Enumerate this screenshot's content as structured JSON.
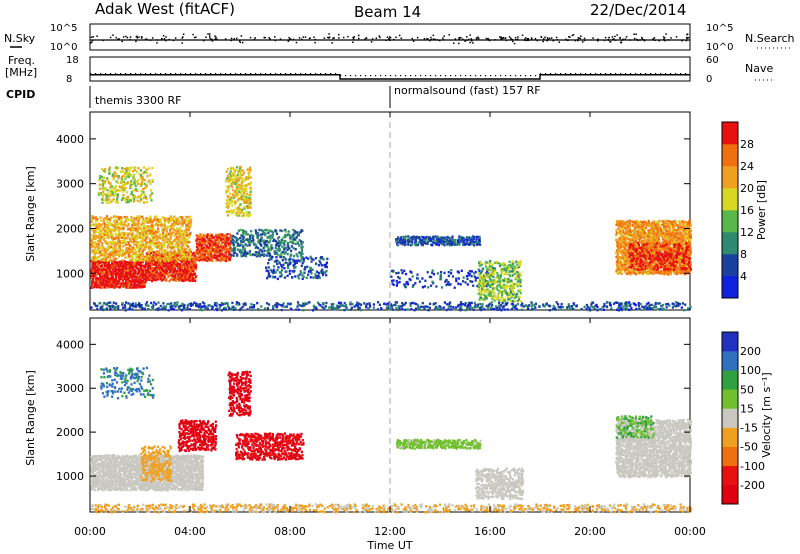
{
  "header": {
    "title": "Adak West (fitACF)",
    "beam": "Beam 14",
    "date": "22/Dec/2014"
  },
  "panels": {
    "nsky_label": "N.Sky",
    "nsearch_label": "N.Search",
    "freq_label_top": "Freq.",
    "freq_label_unit": "[MHz]",
    "nave_label": "Nave",
    "cpid_label": "CPID",
    "nsky_ticks": [
      "10^5",
      "10^0"
    ],
    "nsearch_ticks": [
      "10^5",
      "10^0"
    ],
    "freq_ticks": [
      "18",
      "8"
    ],
    "nave_ticks": [
      "60",
      "0"
    ],
    "cpid_segments": [
      {
        "start_ut": 0.0,
        "end_ut": 12.0,
        "label": "themis 3300 RF"
      },
      {
        "start_ut": 12.0,
        "end_ut": 24.0,
        "label": "normalsound (fast) 157 RF"
      }
    ],
    "freq_profile": [
      {
        "start_ut": 0.0,
        "end_ut": 10.0,
        "mhz": 10.8
      },
      {
        "start_ut": 10.0,
        "end_ut": 18.0,
        "mhz": 8.9
      },
      {
        "start_ut": 18.0,
        "end_ut": 24.0,
        "mhz": 10.8
      }
    ]
  },
  "colorbars": {
    "power": {
      "label": "Power [dB]",
      "ticks": [
        "4",
        "8",
        "12",
        "16",
        "20",
        "24",
        "28"
      ],
      "colors": [
        "#1020e0",
        "#1a40a0",
        "#2e8a70",
        "#58b84a",
        "#d8d820",
        "#f0a020",
        "#f07010",
        "#e81010"
      ]
    },
    "velocity": {
      "label": "Velocity [m s⁻¹]",
      "ticks": [
        "200",
        "100",
        "50",
        "15",
        "-15",
        "-50",
        "-100",
        "-200"
      ],
      "colors": [
        "#2030c0",
        "#3070c0",
        "#30a040",
        "#70c030",
        "#c8c8c0",
        "#f0a020",
        "#f07010",
        "#e81010",
        "#e00010"
      ]
    }
  },
  "axes": {
    "ylabel": "Slant Range [km]",
    "yticks": [
      "1000",
      "2000",
      "3000",
      "4000"
    ],
    "xticks": [
      "00:00",
      "04:00",
      "08:00",
      "12:00",
      "16:00",
      "20:00",
      "00:00"
    ],
    "xlabel": "Time UT"
  },
  "chart_data": [
    {
      "type": "heatmap",
      "title": "",
      "xlabel": "",
      "ylabel": "Slant Range [km]",
      "x_range_ut_hours": [
        0,
        24
      ],
      "ylim": [
        180,
        4600
      ],
      "color_quantity": "Power [dB]",
      "color_range": [
        0,
        30
      ],
      "scatter_regions": [
        {
          "t0": 0.0,
          "t1": 2.2,
          "r0": 700,
          "r1": 1300,
          "val": 29,
          "density": 0.95
        },
        {
          "t0": 2.2,
          "t1": 4.2,
          "r0": 850,
          "r1": 1500,
          "val": 28,
          "density": 0.9
        },
        {
          "t0": 4.2,
          "t1": 5.6,
          "r0": 1300,
          "r1": 1900,
          "val": 26,
          "density": 0.85
        },
        {
          "t0": 0.0,
          "t1": 4.0,
          "r0": 1300,
          "r1": 2300,
          "val": 20,
          "density": 0.6
        },
        {
          "t0": 0.3,
          "t1": 2.5,
          "r0": 2600,
          "r1": 3400,
          "val": 17,
          "density": 0.35
        },
        {
          "t0": 5.4,
          "t1": 6.4,
          "r0": 2300,
          "r1": 3400,
          "val": 18,
          "density": 0.5
        },
        {
          "t0": 5.6,
          "t1": 8.5,
          "r0": 1400,
          "r1": 2000,
          "val": 8,
          "density": 0.45
        },
        {
          "t0": 7.0,
          "t1": 9.5,
          "r0": 900,
          "r1": 1400,
          "val": 6,
          "density": 0.3
        },
        {
          "t0": 12.2,
          "t1": 15.6,
          "r0": 1650,
          "r1": 1850,
          "val": 6,
          "density": 0.75
        },
        {
          "t0": 12.0,
          "t1": 16.0,
          "r0": 700,
          "r1": 1100,
          "val": 5,
          "density": 0.2
        },
        {
          "t0": 15.5,
          "t1": 17.2,
          "r0": 400,
          "r1": 1300,
          "val": 14,
          "density": 0.55
        },
        {
          "t0": 21.0,
          "t1": 24.0,
          "r0": 1000,
          "r1": 2200,
          "val": 22,
          "density": 0.85
        },
        {
          "t0": 21.5,
          "t1": 24.0,
          "r0": 1100,
          "r1": 1700,
          "val": 28,
          "density": 0.55
        },
        {
          "t0": 0.0,
          "t1": 24.0,
          "r0": 200,
          "r1": 380,
          "val": 6,
          "density": 0.4
        }
      ]
    },
    {
      "type": "heatmap",
      "title": "",
      "xlabel": "Time UT",
      "ylabel": "Slant Range [km]",
      "x_range_ut_hours": [
        0,
        24
      ],
      "ylim": [
        180,
        4600
      ],
      "color_quantity": "Velocity [m s⁻¹]",
      "color_range": [
        -200,
        200
      ],
      "scatter_regions": [
        {
          "t0": 0.0,
          "t1": 4.5,
          "r0": 700,
          "r1": 1500,
          "val": 0,
          "density": 0.9
        },
        {
          "t0": 2.0,
          "t1": 3.2,
          "r0": 900,
          "r1": 1700,
          "val": -40,
          "density": 0.45
        },
        {
          "t0": 3.5,
          "t1": 5.0,
          "r0": 1600,
          "r1": 2300,
          "val": -180,
          "density": 0.55
        },
        {
          "t0": 5.5,
          "t1": 6.4,
          "r0": 2400,
          "r1": 3400,
          "val": -200,
          "density": 0.6
        },
        {
          "t0": 5.8,
          "t1": 8.5,
          "r0": 1400,
          "r1": 2000,
          "val": -160,
          "density": 0.6
        },
        {
          "t0": 0.4,
          "t1": 2.5,
          "r0": 2800,
          "r1": 3500,
          "val": 120,
          "density": 0.25
        },
        {
          "t0": 12.2,
          "t1": 15.6,
          "r0": 1650,
          "r1": 1850,
          "val": 40,
          "density": 0.75
        },
        {
          "t0": 15.4,
          "t1": 17.3,
          "r0": 500,
          "r1": 1200,
          "val": 0,
          "density": 0.55
        },
        {
          "t0": 21.0,
          "t1": 24.0,
          "r0": 1000,
          "r1": 2300,
          "val": 0,
          "density": 0.8
        },
        {
          "t0": 21.0,
          "t1": 22.5,
          "r0": 1900,
          "r1": 2400,
          "val": 60,
          "density": 0.4
        },
        {
          "t0": 0.0,
          "t1": 24.0,
          "r0": 200,
          "r1": 380,
          "val": -30,
          "density": 0.4
        }
      ]
    }
  ]
}
